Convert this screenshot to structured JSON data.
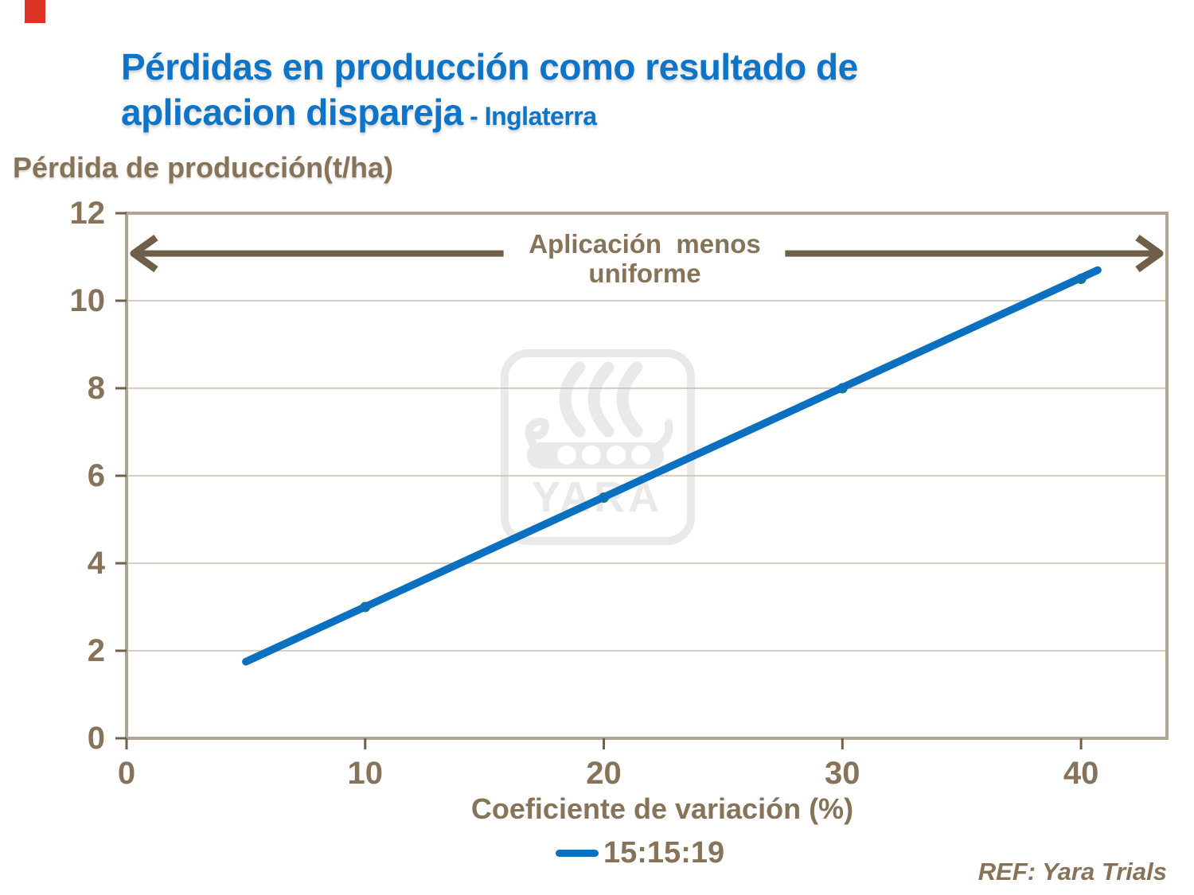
{
  "title": {
    "line1": "Pérdidas en producción como resultado de",
    "line2_main": "aplicacion dispareja",
    "line2_suffix": " - Inglaterra"
  },
  "axis_title_y": "Pérdida de producción(t/ha)",
  "axis_title_x": "Coeficiente de variación (%)",
  "annotation": {
    "line1": "Aplicación  menos",
    "line2": "uniforme"
  },
  "legend": {
    "label": "15:15:19"
  },
  "ref_note": "REF: Yara Trials",
  "watermark_text": "YARA",
  "colors": {
    "title_blue": "#0e74c8",
    "line_blue": "#0c70c0",
    "marker_teal": "#0e8266",
    "text_brown": "#867359",
    "dark_brown": "#6f604a",
    "frame_tan": "#b2a493",
    "gridline_tan": "#c8bfb0",
    "watermark_gray": "#e9e9e9",
    "red_accent": "#dd3226"
  },
  "chart_data": {
    "type": "line",
    "title": "Pérdidas en producción como resultado de aplicacion dispareja - Inglaterra",
    "xlabel": "Coeficiente de variación (%)",
    "ylabel": "Pérdida de producción(t/ha)",
    "xlim": [
      0,
      43.6
    ],
    "ylim": [
      0,
      12
    ],
    "xticks": [
      0,
      10,
      20,
      30,
      40
    ],
    "yticks": [
      0,
      2,
      4,
      6,
      8,
      10,
      12
    ],
    "grid": "horizontal",
    "legend_position": "bottom",
    "series": [
      {
        "name": "15:15:19",
        "color": "#0c70c0",
        "marker": "circle",
        "marker_color": "#0e8266",
        "points": [
          [
            10,
            3
          ],
          [
            20,
            5.5
          ],
          [
            30,
            8
          ],
          [
            40,
            10.5
          ]
        ],
        "line_start": [
          5,
          1.75
        ],
        "line_end": [
          40.7,
          10.7
        ]
      }
    ],
    "annotation": {
      "text": "Aplicación menos uniforme",
      "arrow_y": 11.08,
      "arrow_x_left": 0.3,
      "arrow_x_right": 43.3,
      "text_gap_x": [
        15.8,
        27.6
      ]
    }
  }
}
